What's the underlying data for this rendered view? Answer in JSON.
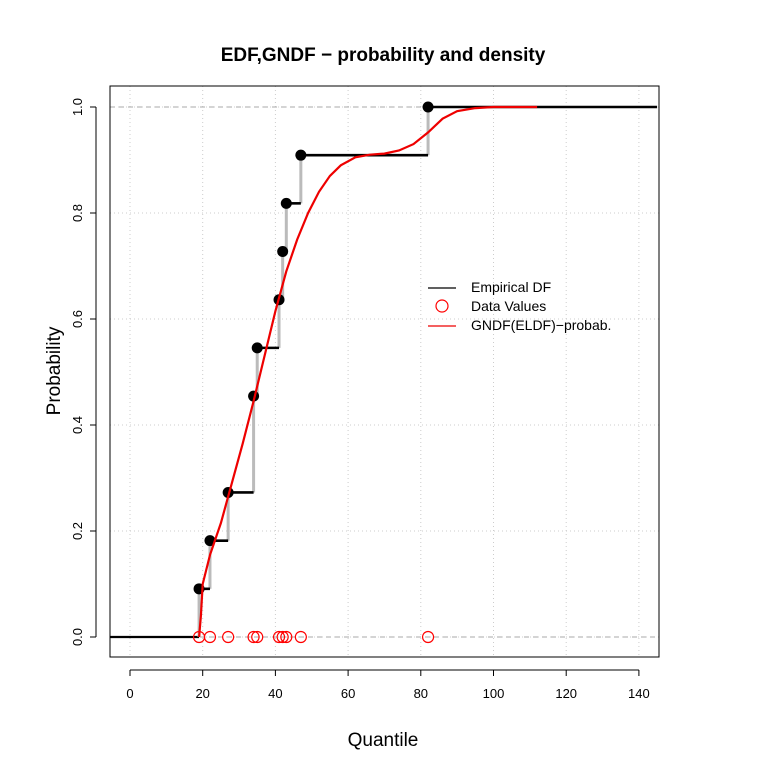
{
  "chart_data": {
    "type": "line",
    "title": "EDF,GNDF − probability and density",
    "xlabel": "Quantile",
    "ylabel": "Probability",
    "xlim": [
      -5,
      145
    ],
    "ylim": [
      0,
      1
    ],
    "x_ticks": [
      0,
      20,
      40,
      60,
      80,
      100,
      120,
      140
    ],
    "y_ticks": [
      0.0,
      0.2,
      0.4,
      0.6,
      0.8,
      1.0
    ],
    "x_tick_labels": [
      "0",
      "20",
      "40",
      "60",
      "80",
      "100",
      "120",
      "140"
    ],
    "y_tick_labels": [
      "0.0",
      "0.2",
      "0.4",
      "0.6",
      "0.8",
      "1.0"
    ],
    "grid": true,
    "legend_position": "right",
    "data_values": [
      19,
      22,
      27,
      34,
      35,
      41,
      42,
      43,
      47,
      82
    ],
    "edf_points": [
      {
        "x": 19,
        "y": 0.0909
      },
      {
        "x": 22,
        "y": 0.1818
      },
      {
        "x": 27,
        "y": 0.2727
      },
      {
        "x": 34,
        "y": 0.4545
      },
      {
        "x": 35,
        "y": 0.5455
      },
      {
        "x": 41,
        "y": 0.6364
      },
      {
        "x": 42,
        "y": 0.7273
      },
      {
        "x": 43,
        "y": 0.8182
      },
      {
        "x": 47,
        "y": 0.9091
      },
      {
        "x": 82,
        "y": 1.0
      }
    ],
    "gndf_curve": {
      "x": [
        19,
        19.5,
        20,
        22,
        25,
        28,
        31,
        34,
        37,
        40,
        43,
        46,
        49,
        52,
        55,
        58,
        62,
        66,
        70,
        74,
        78,
        82,
        86,
        90,
        95,
        100,
        105,
        112
      ],
      "y": [
        0.0,
        0.04,
        0.1,
        0.155,
        0.215,
        0.29,
        0.365,
        0.445,
        0.53,
        0.615,
        0.69,
        0.75,
        0.8,
        0.84,
        0.87,
        0.89,
        0.905,
        0.91,
        0.912,
        0.918,
        0.93,
        0.952,
        0.978,
        0.992,
        0.998,
        1.0,
        1.0,
        1.0
      ]
    },
    "series": [
      {
        "name": "Empirical DF",
        "color": "#000000"
      },
      {
        "name": "Data Values",
        "color": "#ff0000"
      },
      {
        "name": "GNDF(ELDF)−probab.",
        "color": "#ee0000"
      }
    ]
  }
}
